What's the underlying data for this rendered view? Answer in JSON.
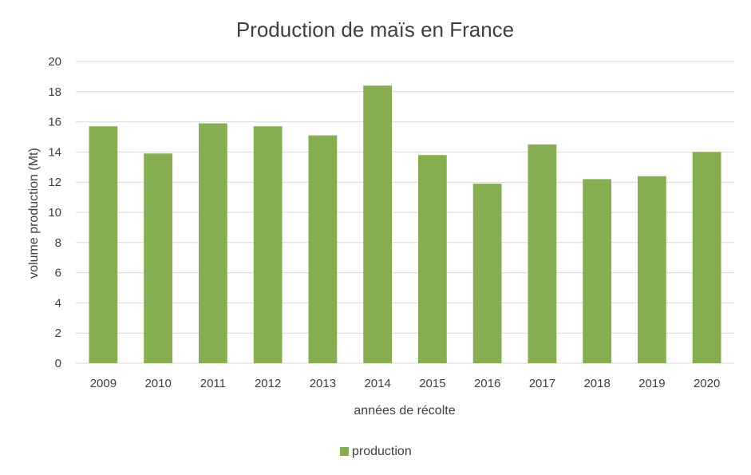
{
  "chart_data": {
    "type": "bar",
    "title": "Production de maïs en France",
    "xlabel": "années de récolte",
    "ylabel": "volume production (Mt)",
    "categories": [
      "2009",
      "2010",
      "2011",
      "2012",
      "2013",
      "2014",
      "2015",
      "2016",
      "2017",
      "2018",
      "2019",
      "2020"
    ],
    "series": [
      {
        "name": "production",
        "color": "#86AD4F",
        "values": [
          15.7,
          13.9,
          15.9,
          15.7,
          15.1,
          18.4,
          13.8,
          11.9,
          14.5,
          12.2,
          12.4,
          14.0
        ]
      }
    ],
    "ylim": [
      0,
      20
    ],
    "yticks": [
      "0",
      "2",
      "4",
      "6",
      "8",
      "10",
      "12",
      "14",
      "16",
      "18",
      "20"
    ],
    "grid": true,
    "legend_position": "bottom"
  }
}
